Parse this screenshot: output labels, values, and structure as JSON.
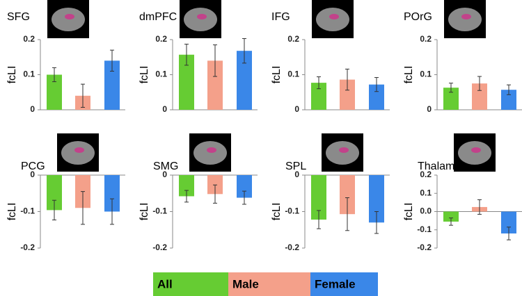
{
  "chart_data": [
    {
      "type": "bar",
      "title": "SFG",
      "ylabel": "fcLI",
      "ylim": [
        0,
        0.2
      ],
      "yticks": [
        0,
        0.1,
        0.2
      ],
      "values": [
        0.1,
        0.04,
        0.14
      ],
      "errors": [
        0.02,
        0.033,
        0.03
      ]
    },
    {
      "type": "bar",
      "title": "dmPFC",
      "ylabel": "fcLI",
      "ylim": [
        0,
        0.2
      ],
      "yticks": [
        0,
        0.1,
        0.2
      ],
      "values": [
        0.157,
        0.14,
        0.168
      ],
      "errors": [
        0.03,
        0.045,
        0.035
      ]
    },
    {
      "type": "bar",
      "title": "IFG",
      "ylabel": "fcLI",
      "ylim": [
        0,
        0.2
      ],
      "yticks": [
        0,
        0.1,
        0.2
      ],
      "values": [
        0.077,
        0.086,
        0.072
      ],
      "errors": [
        0.017,
        0.03,
        0.02
      ]
    },
    {
      "type": "bar",
      "title": "POrG",
      "ylabel": "fcLI",
      "ylim": [
        0,
        0.2
      ],
      "yticks": [
        0,
        0.1,
        0.2
      ],
      "values": [
        0.063,
        0.075,
        0.057
      ],
      "errors": [
        0.013,
        0.02,
        0.014
      ]
    },
    {
      "type": "bar",
      "title": "PCG",
      "ylabel": "fcLI",
      "ylim": [
        -0.2,
        0
      ],
      "yticks": [
        -0.2,
        -0.1,
        0
      ],
      "values": [
        -0.096,
        -0.09,
        -0.1
      ],
      "errors": [
        0.027,
        0.045,
        0.035
      ]
    },
    {
      "type": "bar",
      "title": "SMG",
      "ylabel": "fcLI",
      "ylim": [
        -0.2,
        0
      ],
      "yticks": [
        -0.2,
        -0.1,
        0
      ],
      "values": [
        -0.058,
        -0.052,
        -0.062
      ],
      "errors": [
        0.016,
        0.025,
        0.018
      ]
    },
    {
      "type": "bar",
      "title": "SPL",
      "ylabel": "fcLI",
      "ylim": [
        -0.2,
        0
      ],
      "yticks": [
        -0.2,
        -0.1,
        0
      ],
      "values": [
        -0.122,
        -0.107,
        -0.13
      ],
      "errors": [
        0.025,
        0.045,
        0.03
      ]
    },
    {
      "type": "bar",
      "title": "Thalamus",
      "ylabel": "fcLI",
      "ylim": [
        -0.2,
        0.2
      ],
      "yticks": [
        -0.2,
        -0.1,
        {
          "value": 0,
          "label": "0.0"
        },
        0.1,
        0.2
      ],
      "values": [
        -0.055,
        0.025,
        -0.12
      ],
      "errors": [
        0.02,
        0.04,
        0.035
      ]
    }
  ],
  "legend": {
    "entries": [
      {
        "name": "All",
        "color": "#66cc33"
      },
      {
        "name": "Male",
        "color": "#f4a08a"
      },
      {
        "name": "Female",
        "color": "#3a87e8"
      }
    ]
  }
}
